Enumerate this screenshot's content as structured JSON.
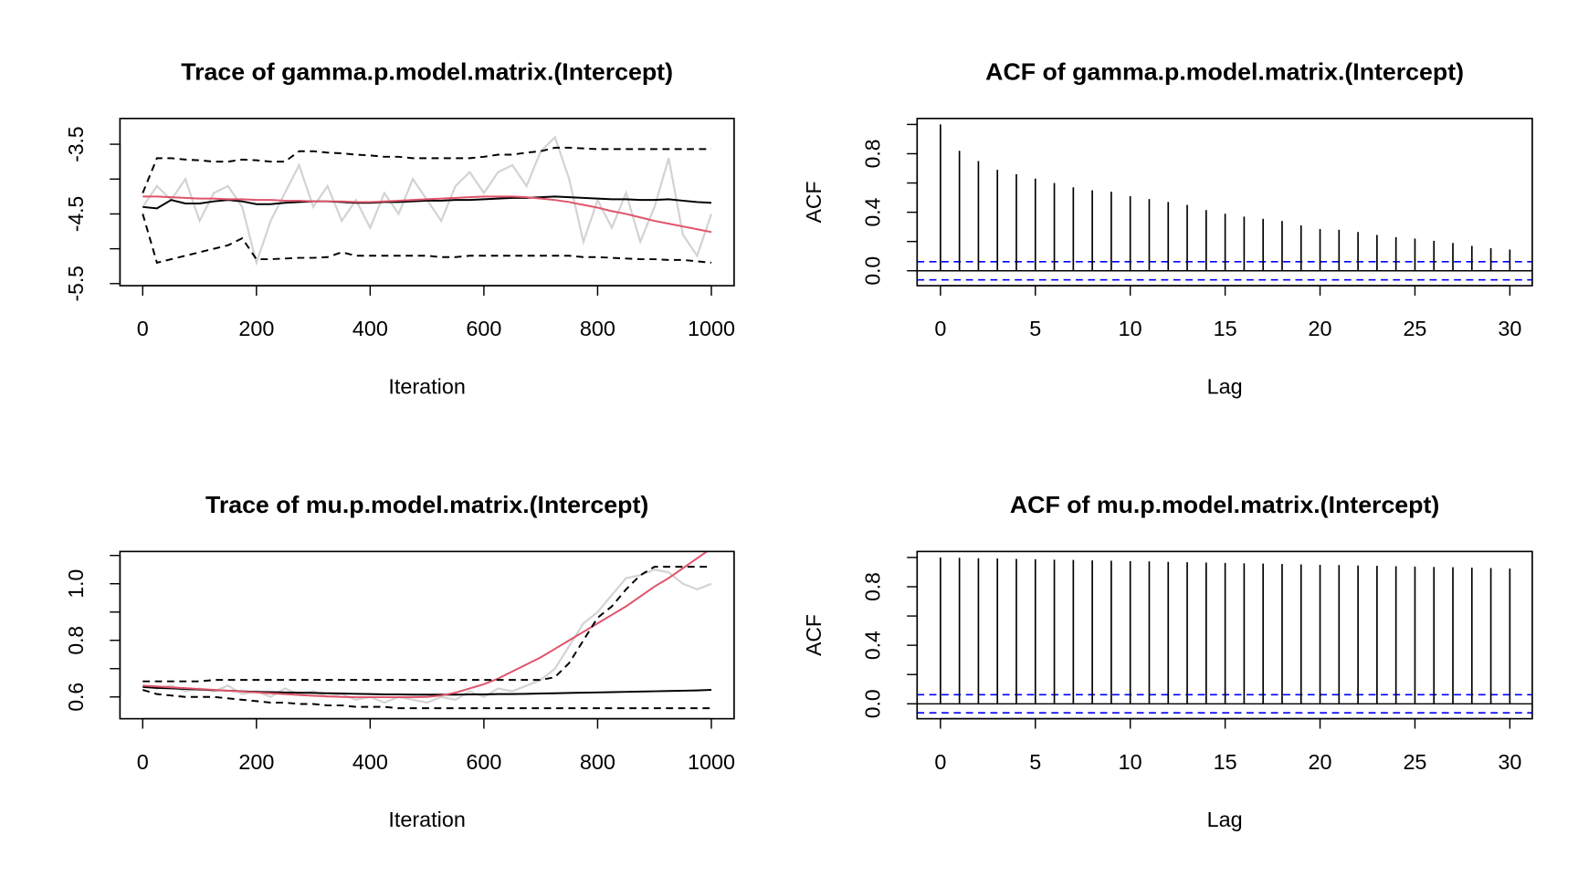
{
  "chart_data": [
    {
      "type": "line",
      "title": "Trace of gamma.p.model.matrix.(Intercept)",
      "xlabel": "Iteration",
      "x": [
        0,
        25,
        50,
        75,
        100,
        125,
        150,
        175,
        200,
        225,
        250,
        275,
        300,
        325,
        350,
        375,
        400,
        425,
        450,
        475,
        500,
        525,
        550,
        575,
        600,
        625,
        650,
        675,
        700,
        725,
        750,
        775,
        800,
        825,
        850,
        875,
        900,
        925,
        950,
        975,
        1000
      ],
      "series": [
        {
          "color": "#d3d3d3",
          "dash": false,
          "values": [
            -4.4,
            -4.1,
            -4.3,
            -4.0,
            -4.6,
            -4.2,
            -4.1,
            -4.4,
            -5.2,
            -4.6,
            -4.2,
            -3.8,
            -4.4,
            -4.1,
            -4.6,
            -4.3,
            -4.7,
            -4.2,
            -4.5,
            -4.0,
            -4.3,
            -4.6,
            -4.1,
            -3.9,
            -4.2,
            -3.9,
            -3.8,
            -4.1,
            -3.6,
            -3.4,
            -4.0,
            -4.9,
            -4.3,
            -4.7,
            -4.2,
            -4.9,
            -4.4,
            -3.7,
            -4.8,
            -5.1,
            -4.5
          ]
        },
        {
          "color": "#000000",
          "dash": false,
          "values": [
            -4.4,
            -4.42,
            -4.3,
            -4.35,
            -4.35,
            -4.32,
            -4.3,
            -4.32,
            -4.36,
            -4.36,
            -4.34,
            -4.33,
            -4.32,
            -4.32,
            -4.33,
            -4.34,
            -4.34,
            -4.33,
            -4.33,
            -4.32,
            -4.31,
            -4.31,
            -4.3,
            -4.3,
            -4.29,
            -4.28,
            -4.27,
            -4.27,
            -4.26,
            -4.25,
            -4.26,
            -4.27,
            -4.28,
            -4.29,
            -4.29,
            -4.3,
            -4.3,
            -4.29,
            -4.31,
            -4.33,
            -4.34
          ]
        },
        {
          "color": "#df536b",
          "dash": false,
          "values": [
            -4.25,
            -4.25,
            -4.26,
            -4.27,
            -4.28,
            -4.28,
            -4.29,
            -4.29,
            -4.3,
            -4.3,
            -4.31,
            -4.31,
            -4.32,
            -4.32,
            -4.32,
            -4.33,
            -4.33,
            -4.32,
            -4.31,
            -4.3,
            -4.29,
            -4.28,
            -4.27,
            -4.26,
            -4.25,
            -4.25,
            -4.25,
            -4.26,
            -4.28,
            -4.3,
            -4.33,
            -4.37,
            -4.41,
            -4.46,
            -4.5,
            -4.55,
            -4.6,
            -4.64,
            -4.68,
            -4.72,
            -4.76
          ]
        },
        {
          "color": "#000000",
          "dash": true,
          "values": [
            -4.2,
            -3.7,
            -3.7,
            -3.72,
            -3.73,
            -3.75,
            -3.75,
            -3.72,
            -3.73,
            -3.75,
            -3.75,
            -3.6,
            -3.6,
            -3.62,
            -3.63,
            -3.65,
            -3.66,
            -3.68,
            -3.68,
            -3.7,
            -3.7,
            -3.7,
            -3.7,
            -3.7,
            -3.68,
            -3.65,
            -3.65,
            -3.62,
            -3.6,
            -3.55,
            -3.55,
            -3.56,
            -3.57,
            -3.57,
            -3.57,
            -3.57,
            -3.57,
            -3.57,
            -3.57,
            -3.57,
            -3.57
          ]
        },
        {
          "color": "#000000",
          "dash": true,
          "values": [
            -4.5,
            -5.2,
            -5.15,
            -5.1,
            -5.05,
            -5.0,
            -4.95,
            -4.85,
            -5.15,
            -5.15,
            -5.14,
            -5.13,
            -5.13,
            -5.12,
            -5.05,
            -5.1,
            -5.1,
            -5.1,
            -5.1,
            -5.1,
            -5.1,
            -5.12,
            -5.12,
            -5.1,
            -5.1,
            -5.1,
            -5.1,
            -5.1,
            -5.1,
            -5.1,
            -5.1,
            -5.12,
            -5.12,
            -5.13,
            -5.14,
            -5.15,
            -5.15,
            -5.16,
            -5.16,
            -5.18,
            -5.2
          ]
        }
      ],
      "xlim": [
        -40,
        1040
      ],
      "ylim": [
        -5.53,
        -3.13
      ],
      "xticks": [
        0,
        200,
        400,
        600,
        800,
        1000
      ],
      "yticks": [
        -5.5,
        -4.5,
        -3.5
      ],
      "yminor": [
        -5,
        -4
      ]
    },
    {
      "type": "bar",
      "title": "ACF of gamma.p.model.matrix.(Intercept)",
      "xlabel": "Lag",
      "ylabel": "ACF",
      "x": [
        0,
        1,
        2,
        3,
        4,
        5,
        6,
        7,
        8,
        9,
        10,
        11,
        12,
        13,
        14,
        15,
        16,
        17,
        18,
        19,
        20,
        21,
        22,
        23,
        24,
        25,
        26,
        27,
        28,
        29,
        30
      ],
      "values": [
        1,
        0.82,
        0.75,
        0.69,
        0.66,
        0.63,
        0.6,
        0.57,
        0.55,
        0.54,
        0.51,
        0.49,
        0.47,
        0.45,
        0.415,
        0.39,
        0.37,
        0.355,
        0.34,
        0.31,
        0.285,
        0.28,
        0.265,
        0.245,
        0.23,
        0.22,
        0.205,
        0.19,
        0.17,
        0.155,
        0.145
      ],
      "color": "#000000",
      "ci": 0.062,
      "ci_color": "#0000ff",
      "xlim": [
        -1.23,
        31.18
      ],
      "ylim": [
        -0.102,
        1.041
      ],
      "xticks": [
        0,
        5,
        10,
        15,
        20,
        25,
        30
      ],
      "yticks": [
        {
          "value": 0,
          "label": "0.0"
        },
        0.4,
        0.8
      ],
      "yminor": [
        0.2,
        0.6,
        1
      ]
    },
    {
      "type": "line",
      "title": "Trace of mu.p.model.matrix.(Intercept)",
      "xlabel": "Iteration",
      "x": [
        0,
        25,
        50,
        75,
        100,
        125,
        150,
        175,
        200,
        225,
        250,
        275,
        300,
        325,
        350,
        375,
        400,
        425,
        450,
        475,
        500,
        525,
        550,
        575,
        600,
        625,
        650,
        675,
        700,
        725,
        750,
        775,
        800,
        825,
        850,
        875,
        900,
        925,
        950,
        975,
        1000
      ],
      "series": [
        {
          "color": "#d3d3d3",
          "dash": false,
          "values": [
            0.64,
            0.63,
            0.64,
            0.62,
            0.63,
            0.62,
            0.64,
            0.61,
            0.62,
            0.6,
            0.63,
            0.61,
            0.62,
            0.6,
            0.61,
            0.59,
            0.6,
            0.58,
            0.6,
            0.59,
            0.58,
            0.6,
            0.59,
            0.62,
            0.6,
            0.63,
            0.62,
            0.64,
            0.66,
            0.7,
            0.78,
            0.86,
            0.9,
            0.96,
            1.02,
            1.03,
            1.05,
            1.04,
            1.0,
            0.98,
            1.0
          ]
        },
        {
          "color": "#000000",
          "dash": false,
          "values": [
            0.635,
            0.632,
            0.63,
            0.628,
            0.626,
            0.624,
            0.622,
            0.62,
            0.618,
            0.617,
            0.616,
            0.615,
            0.614,
            0.613,
            0.612,
            0.611,
            0.61,
            0.609,
            0.609,
            0.608,
            0.608,
            0.608,
            0.608,
            0.609,
            0.609,
            0.61,
            0.61,
            0.611,
            0.612,
            0.613,
            0.614,
            0.615,
            0.616,
            0.617,
            0.618,
            0.619,
            0.62,
            0.621,
            0.622,
            0.623,
            0.625
          ]
        },
        {
          "color": "#df536b",
          "dash": false,
          "values": [
            0.64,
            0.637,
            0.634,
            0.631,
            0.628,
            0.625,
            0.622,
            0.619,
            0.616,
            0.613,
            0.61,
            0.607,
            0.604,
            0.602,
            0.6,
            0.599,
            0.599,
            0.599,
            0.599,
            0.599,
            0.6,
            0.605,
            0.615,
            0.63,
            0.645,
            0.665,
            0.69,
            0.715,
            0.74,
            0.77,
            0.8,
            0.83,
            0.86,
            0.89,
            0.92,
            0.955,
            0.99,
            1.02,
            1.055,
            1.09,
            1.125
          ]
        },
        {
          "color": "#000000",
          "dash": true,
          "values": [
            0.655,
            0.655,
            0.655,
            0.655,
            0.655,
            0.66,
            0.66,
            0.66,
            0.66,
            0.66,
            0.66,
            0.66,
            0.66,
            0.66,
            0.66,
            0.66,
            0.66,
            0.66,
            0.66,
            0.66,
            0.66,
            0.66,
            0.66,
            0.66,
            0.66,
            0.66,
            0.66,
            0.66,
            0.66,
            0.67,
            0.72,
            0.8,
            0.88,
            0.92,
            0.98,
            1.03,
            1.06,
            1.06,
            1.06,
            1.06,
            1.06
          ]
        },
        {
          "color": "#000000",
          "dash": true,
          "values": [
            0.625,
            0.61,
            0.605,
            0.6,
            0.6,
            0.6,
            0.595,
            0.59,
            0.585,
            0.58,
            0.58,
            0.575,
            0.575,
            0.57,
            0.57,
            0.565,
            0.565,
            0.565,
            0.56,
            0.56,
            0.56,
            0.56,
            0.56,
            0.56,
            0.56,
            0.56,
            0.56,
            0.56,
            0.56,
            0.56,
            0.56,
            0.56,
            0.56,
            0.56,
            0.56,
            0.56,
            0.56,
            0.56,
            0.56,
            0.56,
            0.56
          ]
        }
      ],
      "xlim": [
        -40,
        1040
      ],
      "ylim": [
        0.523,
        1.114
      ],
      "xticks": [
        0,
        200,
        400,
        600,
        800,
        1000
      ],
      "yticks": [
        0.6,
        0.8,
        {
          "value": 1,
          "label": "1.0"
        }
      ],
      "yminor": [
        0.7,
        0.9,
        1.1
      ]
    },
    {
      "type": "bar",
      "title": "ACF of mu.p.model.matrix.(Intercept)",
      "xlabel": "Lag",
      "ylabel": "ACF",
      "x": [
        0,
        1,
        2,
        3,
        4,
        5,
        6,
        7,
        8,
        9,
        10,
        11,
        12,
        13,
        14,
        15,
        16,
        17,
        18,
        19,
        20,
        21,
        22,
        23,
        24,
        25,
        26,
        27,
        28,
        29,
        30
      ],
      "values": [
        1,
        0.998,
        0.995,
        0.993,
        0.99,
        0.988,
        0.985,
        0.983,
        0.98,
        0.978,
        0.975,
        0.973,
        0.97,
        0.968,
        0.965,
        0.963,
        0.96,
        0.958,
        0.955,
        0.953,
        0.95,
        0.948,
        0.945,
        0.943,
        0.94,
        0.938,
        0.935,
        0.933,
        0.93,
        0.928,
        0.925
      ],
      "color": "#000000",
      "ci": 0.062,
      "ci_color": "#0000ff",
      "xlim": [
        -1.23,
        31.18
      ],
      "ylim": [
        -0.102,
        1.041
      ],
      "xticks": [
        0,
        5,
        10,
        15,
        20,
        25,
        30
      ],
      "yticks": [
        {
          "value": 0,
          "label": "0.0"
        },
        0.4,
        0.8
      ],
      "yminor": [
        0.2,
        0.6,
        1
      ]
    }
  ]
}
